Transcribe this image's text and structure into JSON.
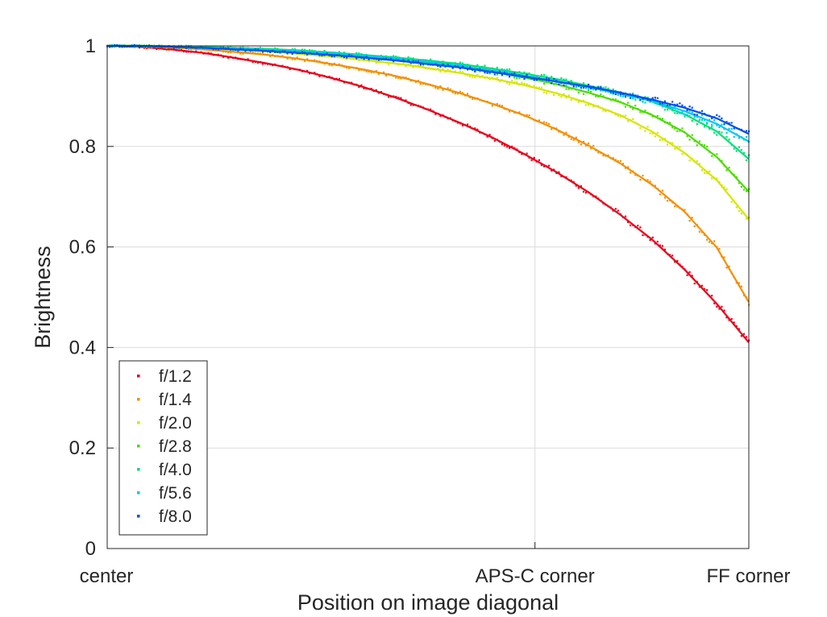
{
  "chart_data": {
    "type": "scatter",
    "title": "",
    "xlabel": "Position on image diagonal",
    "ylabel": "Brightness",
    "xlim": [
      0,
      1
    ],
    "ylim": [
      0,
      1
    ],
    "grid": true,
    "legend_position": "bottom-left",
    "x_ticks": [
      {
        "value": 0,
        "label": "center"
      },
      {
        "value": 0.6667,
        "label": "APS-C corner"
      },
      {
        "value": 1,
        "label": "FF corner"
      }
    ],
    "y_ticks": [
      {
        "value": 0,
        "label": "0"
      },
      {
        "value": 0.2,
        "label": "0.2"
      },
      {
        "value": 0.4,
        "label": "0.4"
      },
      {
        "value": 0.6,
        "label": "0.6"
      },
      {
        "value": 0.8,
        "label": "0.8"
      },
      {
        "value": 1,
        "label": "1"
      }
    ],
    "x": [
      0,
      0.05,
      0.1,
      0.15,
      0.2,
      0.25,
      0.3,
      0.35,
      0.4,
      0.45,
      0.5,
      0.55,
      0.6,
      0.65,
      0.7,
      0.75,
      0.8,
      0.85,
      0.9,
      0.95,
      1.0
    ],
    "series": [
      {
        "name": "f/1.2",
        "color": "#e6001a",
        "values": [
          1.0,
          0.998,
          0.993,
          0.986,
          0.976,
          0.965,
          0.952,
          0.936,
          0.918,
          0.897,
          0.873,
          0.847,
          0.818,
          0.785,
          0.749,
          0.709,
          0.664,
          0.614,
          0.555,
          0.487,
          0.41
        ]
      },
      {
        "name": "f/1.4",
        "color": "#f29000",
        "values": [
          1.0,
          1.0,
          0.997,
          0.993,
          0.988,
          0.982,
          0.974,
          0.964,
          0.953,
          0.94,
          0.924,
          0.906,
          0.885,
          0.862,
          0.834,
          0.802,
          0.766,
          0.723,
          0.67,
          0.599,
          0.49
        ]
      },
      {
        "name": "f/2.0",
        "color": "#d6e600",
        "values": [
          1.0,
          1.0,
          0.998,
          0.996,
          0.993,
          0.989,
          0.984,
          0.979,
          0.972,
          0.965,
          0.956,
          0.946,
          0.935,
          0.922,
          0.906,
          0.886,
          0.862,
          0.829,
          0.787,
          0.733,
          0.655
        ]
      },
      {
        "name": "f/2.8",
        "color": "#4ddb00",
        "values": [
          1.0,
          1.0,
          0.999,
          0.997,
          0.995,
          0.992,
          0.989,
          0.985,
          0.979,
          0.973,
          0.966,
          0.958,
          0.948,
          0.937,
          0.924,
          0.907,
          0.888,
          0.862,
          0.828,
          0.779,
          0.71
        ]
      },
      {
        "name": "f/4.0",
        "color": "#00e07a",
        "values": [
          1.0,
          1.0,
          0.999,
          0.998,
          0.996,
          0.994,
          0.991,
          0.987,
          0.982,
          0.977,
          0.971,
          0.964,
          0.955,
          0.945,
          0.934,
          0.921,
          0.907,
          0.889,
          0.864,
          0.83,
          0.775
        ]
      },
      {
        "name": "f/5.6",
        "color": "#00c8f0",
        "values": [
          1.0,
          1.0,
          0.999,
          0.997,
          0.995,
          0.992,
          0.989,
          0.985,
          0.98,
          0.975,
          0.968,
          0.96,
          0.951,
          0.941,
          0.93,
          0.918,
          0.905,
          0.89,
          0.87,
          0.845,
          0.81
        ]
      },
      {
        "name": "f/8.0",
        "color": "#0050e6",
        "values": [
          1.0,
          1.0,
          0.998,
          0.996,
          0.993,
          0.99,
          0.986,
          0.982,
          0.977,
          0.971,
          0.964,
          0.957,
          0.948,
          0.939,
          0.929,
          0.919,
          0.907,
          0.893,
          0.877,
          0.856,
          0.825
        ]
      }
    ]
  }
}
